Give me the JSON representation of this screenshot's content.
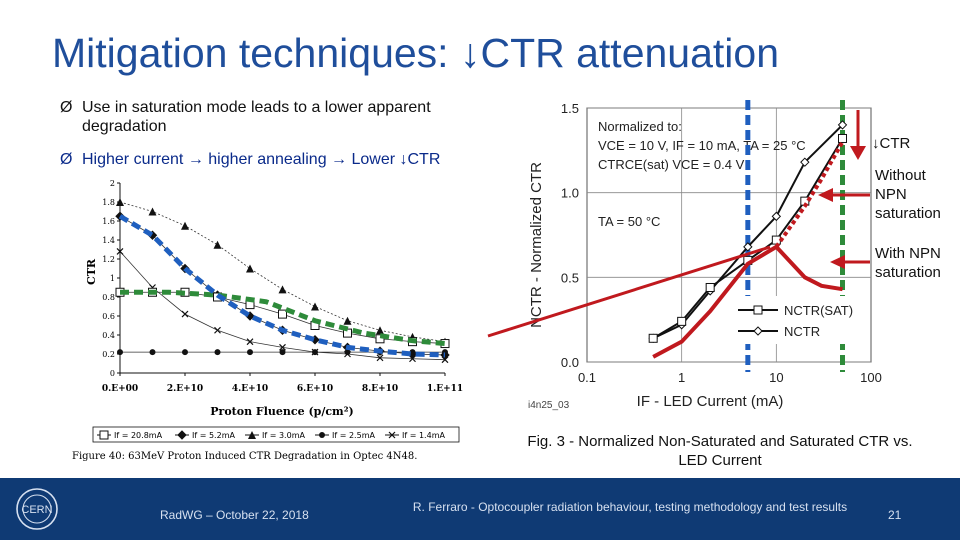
{
  "slide": {
    "title": "Mitigation techniques: ↓CTR attenuation",
    "bullets": [
      "Use in saturation mode leads to a lower apparent degradation",
      "Higher current → higher annealing → Lower ↓CTR"
    ],
    "bullet_marker": "Ø"
  },
  "footer": {
    "date": "RadWG – October 22, 2018",
    "citation": "R. Ferraro - Optocoupler radiation behaviour, testing methodology and test results",
    "page": "21",
    "logo": "CERN",
    "bg_color": "#0f3a74"
  },
  "chart_data": [
    {
      "type": "line",
      "id": "left",
      "xlabel": "Proton Fluence (p/cm²)",
      "ylabel": "CTR",
      "x_tick_labels": [
        "0.E+00",
        "2.E+10",
        "4.E+10",
        "6.E+10",
        "8.E+10",
        "1.E+11"
      ],
      "y_tick_labels": [
        "0",
        "0.2",
        "0.4",
        "0.6",
        "0.8",
        "1",
        "1.2",
        "1.4",
        "1.6",
        "1.8",
        "2"
      ],
      "xlim": [
        0,
        100000000000.0
      ],
      "ylim": [
        0,
        2
      ],
      "caption": "Figure 40: 63MeV Proton Induced CTR Degradation in Optec 4N48.",
      "legend": [
        "If = 20.8mA",
        "If = 5.2mA",
        "If = 3.0mA",
        "If = 2.5mA",
        "If = 1.4mA"
      ],
      "series": [
        {
          "name": "If = 20.8mA",
          "marker": "square",
          "x": [
            0,
            10000000000.0,
            20000000000.0,
            30000000000.0,
            40000000000.0,
            50000000000.0,
            60000000000.0,
            70000000000.0,
            80000000000.0,
            90000000000.0,
            100000000000.0
          ],
          "y": [
            0.85,
            0.85,
            0.85,
            0.8,
            0.72,
            0.62,
            0.5,
            0.42,
            0.36,
            0.33,
            0.31
          ]
        },
        {
          "name": "If = 5.2mA",
          "marker": "diamond",
          "x": [
            0,
            10000000000.0,
            20000000000.0,
            30000000000.0,
            40000000000.0,
            50000000000.0,
            60000000000.0,
            70000000000.0,
            80000000000.0,
            90000000000.0,
            100000000000.0
          ],
          "y": [
            1.65,
            1.45,
            1.1,
            0.82,
            0.6,
            0.45,
            0.35,
            0.27,
            0.23,
            0.2,
            0.19
          ]
        },
        {
          "name": "If = 3.0mA",
          "marker": "triangle",
          "x": [
            0,
            10000000000.0,
            20000000000.0,
            30000000000.0,
            40000000000.0,
            50000000000.0,
            60000000000.0,
            70000000000.0,
            80000000000.0,
            90000000000.0,
            100000000000.0
          ],
          "y": [
            1.8,
            1.7,
            1.55,
            1.35,
            1.1,
            0.88,
            0.7,
            0.55,
            0.45,
            0.38,
            0.33
          ]
        },
        {
          "name": "If = 2.5mA",
          "marker": "circle",
          "x": [
            0,
            10000000000.0,
            20000000000.0,
            30000000000.0,
            40000000000.0,
            50000000000.0,
            60000000000.0,
            70000000000.0,
            80000000000.0,
            90000000000.0,
            100000000000.0
          ],
          "y": [
            0.22,
            0.22,
            0.22,
            0.22,
            0.22,
            0.22,
            0.22,
            0.22,
            0.22,
            0.22,
            0.22
          ]
        },
        {
          "name": "If = 1.4mA",
          "marker": "x",
          "x": [
            0,
            10000000000.0,
            20000000000.0,
            30000000000.0,
            40000000000.0,
            50000000000.0,
            60000000000.0,
            70000000000.0,
            80000000000.0,
            90000000000.0,
            100000000000.0
          ],
          "y": [
            1.28,
            0.9,
            0.62,
            0.45,
            0.33,
            0.27,
            0.22,
            0.2,
            0.16,
            0.15,
            0.14
          ]
        }
      ],
      "overlays": [
        {
          "color": "#2e8b3a",
          "style": "dashed",
          "x": [
            0,
            15000000000.0,
            30000000000.0,
            45000000000.0,
            60000000000.0,
            75000000000.0,
            90000000000.0,
            100000000000.0
          ],
          "y": [
            0.85,
            0.85,
            0.82,
            0.75,
            0.55,
            0.42,
            0.34,
            0.31
          ]
        },
        {
          "color": "#1f5fbf",
          "style": "dashed",
          "x": [
            0,
            10000000000.0,
            20000000000.0,
            30000000000.0,
            40000000000.0,
            50000000000.0,
            60000000000.0,
            70000000000.0,
            80000000000.0,
            90000000000.0,
            100000000000.0
          ],
          "y": [
            1.65,
            1.45,
            1.1,
            0.82,
            0.6,
            0.45,
            0.35,
            0.27,
            0.23,
            0.2,
            0.19
          ]
        }
      ]
    },
    {
      "type": "line",
      "id": "right",
      "xscale": "log",
      "xlabel": "IF - LED Current (mA)",
      "ylabel": "NCTR - Normalized CTR",
      "x_ticks": [
        0.1,
        1,
        10,
        100
      ],
      "x_tick_labels": [
        "0.1",
        "1",
        "10",
        "100"
      ],
      "y_ticks": [
        0,
        0.5,
        1.0,
        1.5
      ],
      "y_tick_labels": [
        "0.0",
        "0.5",
        "1.0",
        "1.5"
      ],
      "xlim": [
        0.1,
        100
      ],
      "ylim": [
        0,
        1.5
      ],
      "annotation": {
        "heading": "Normalized to:",
        "line1": "VCE = 10 V, IF = 10 mA, TA = 25 °C",
        "line2": "CTRCE(sat) VCE = 0.4 V",
        "temp": "TA = 50 °C"
      },
      "code": "i4n25_03",
      "caption": "Fig. 3 - Normalized Non-Saturated and Saturated CTR vs. LED Current",
      "legend": [
        "NCTR(SAT)",
        "NCTR"
      ],
      "series": [
        {
          "name": "NCTR",
          "marker": "diamond",
          "x": [
            0.5,
            1,
            2,
            5,
            10,
            20,
            50
          ],
          "y": [
            0.14,
            0.22,
            0.42,
            0.68,
            0.86,
            1.18,
            1.4
          ]
        },
        {
          "name": "NCTR(SAT)",
          "marker": "square",
          "x": [
            0.5,
            1,
            2,
            5,
            10,
            20,
            50
          ],
          "y": [
            0.14,
            0.24,
            0.44,
            0.6,
            0.72,
            0.95,
            1.32
          ]
        }
      ],
      "overlays": [
        {
          "color": "#c0191e",
          "style": "solid",
          "x": [
            0.5,
            1,
            2,
            5,
            10,
            20,
            30,
            50
          ],
          "y": [
            0.03,
            0.12,
            0.3,
            0.58,
            0.68,
            0.5,
            0.45,
            0.43
          ]
        },
        {
          "color": "#c0191e",
          "style": "dotted",
          "x": [
            10,
            20,
            30,
            50
          ],
          "y": [
            0.68,
            0.92,
            1.08,
            1.3
          ]
        }
      ],
      "vlines": [
        {
          "x": 5,
          "color": "#1f5fbf"
        },
        {
          "x": 50,
          "color": "#2e8b3a"
        }
      ],
      "callouts": [
        "↓CTR",
        "Without NPN saturation",
        "With NPN saturation"
      ]
    }
  ]
}
